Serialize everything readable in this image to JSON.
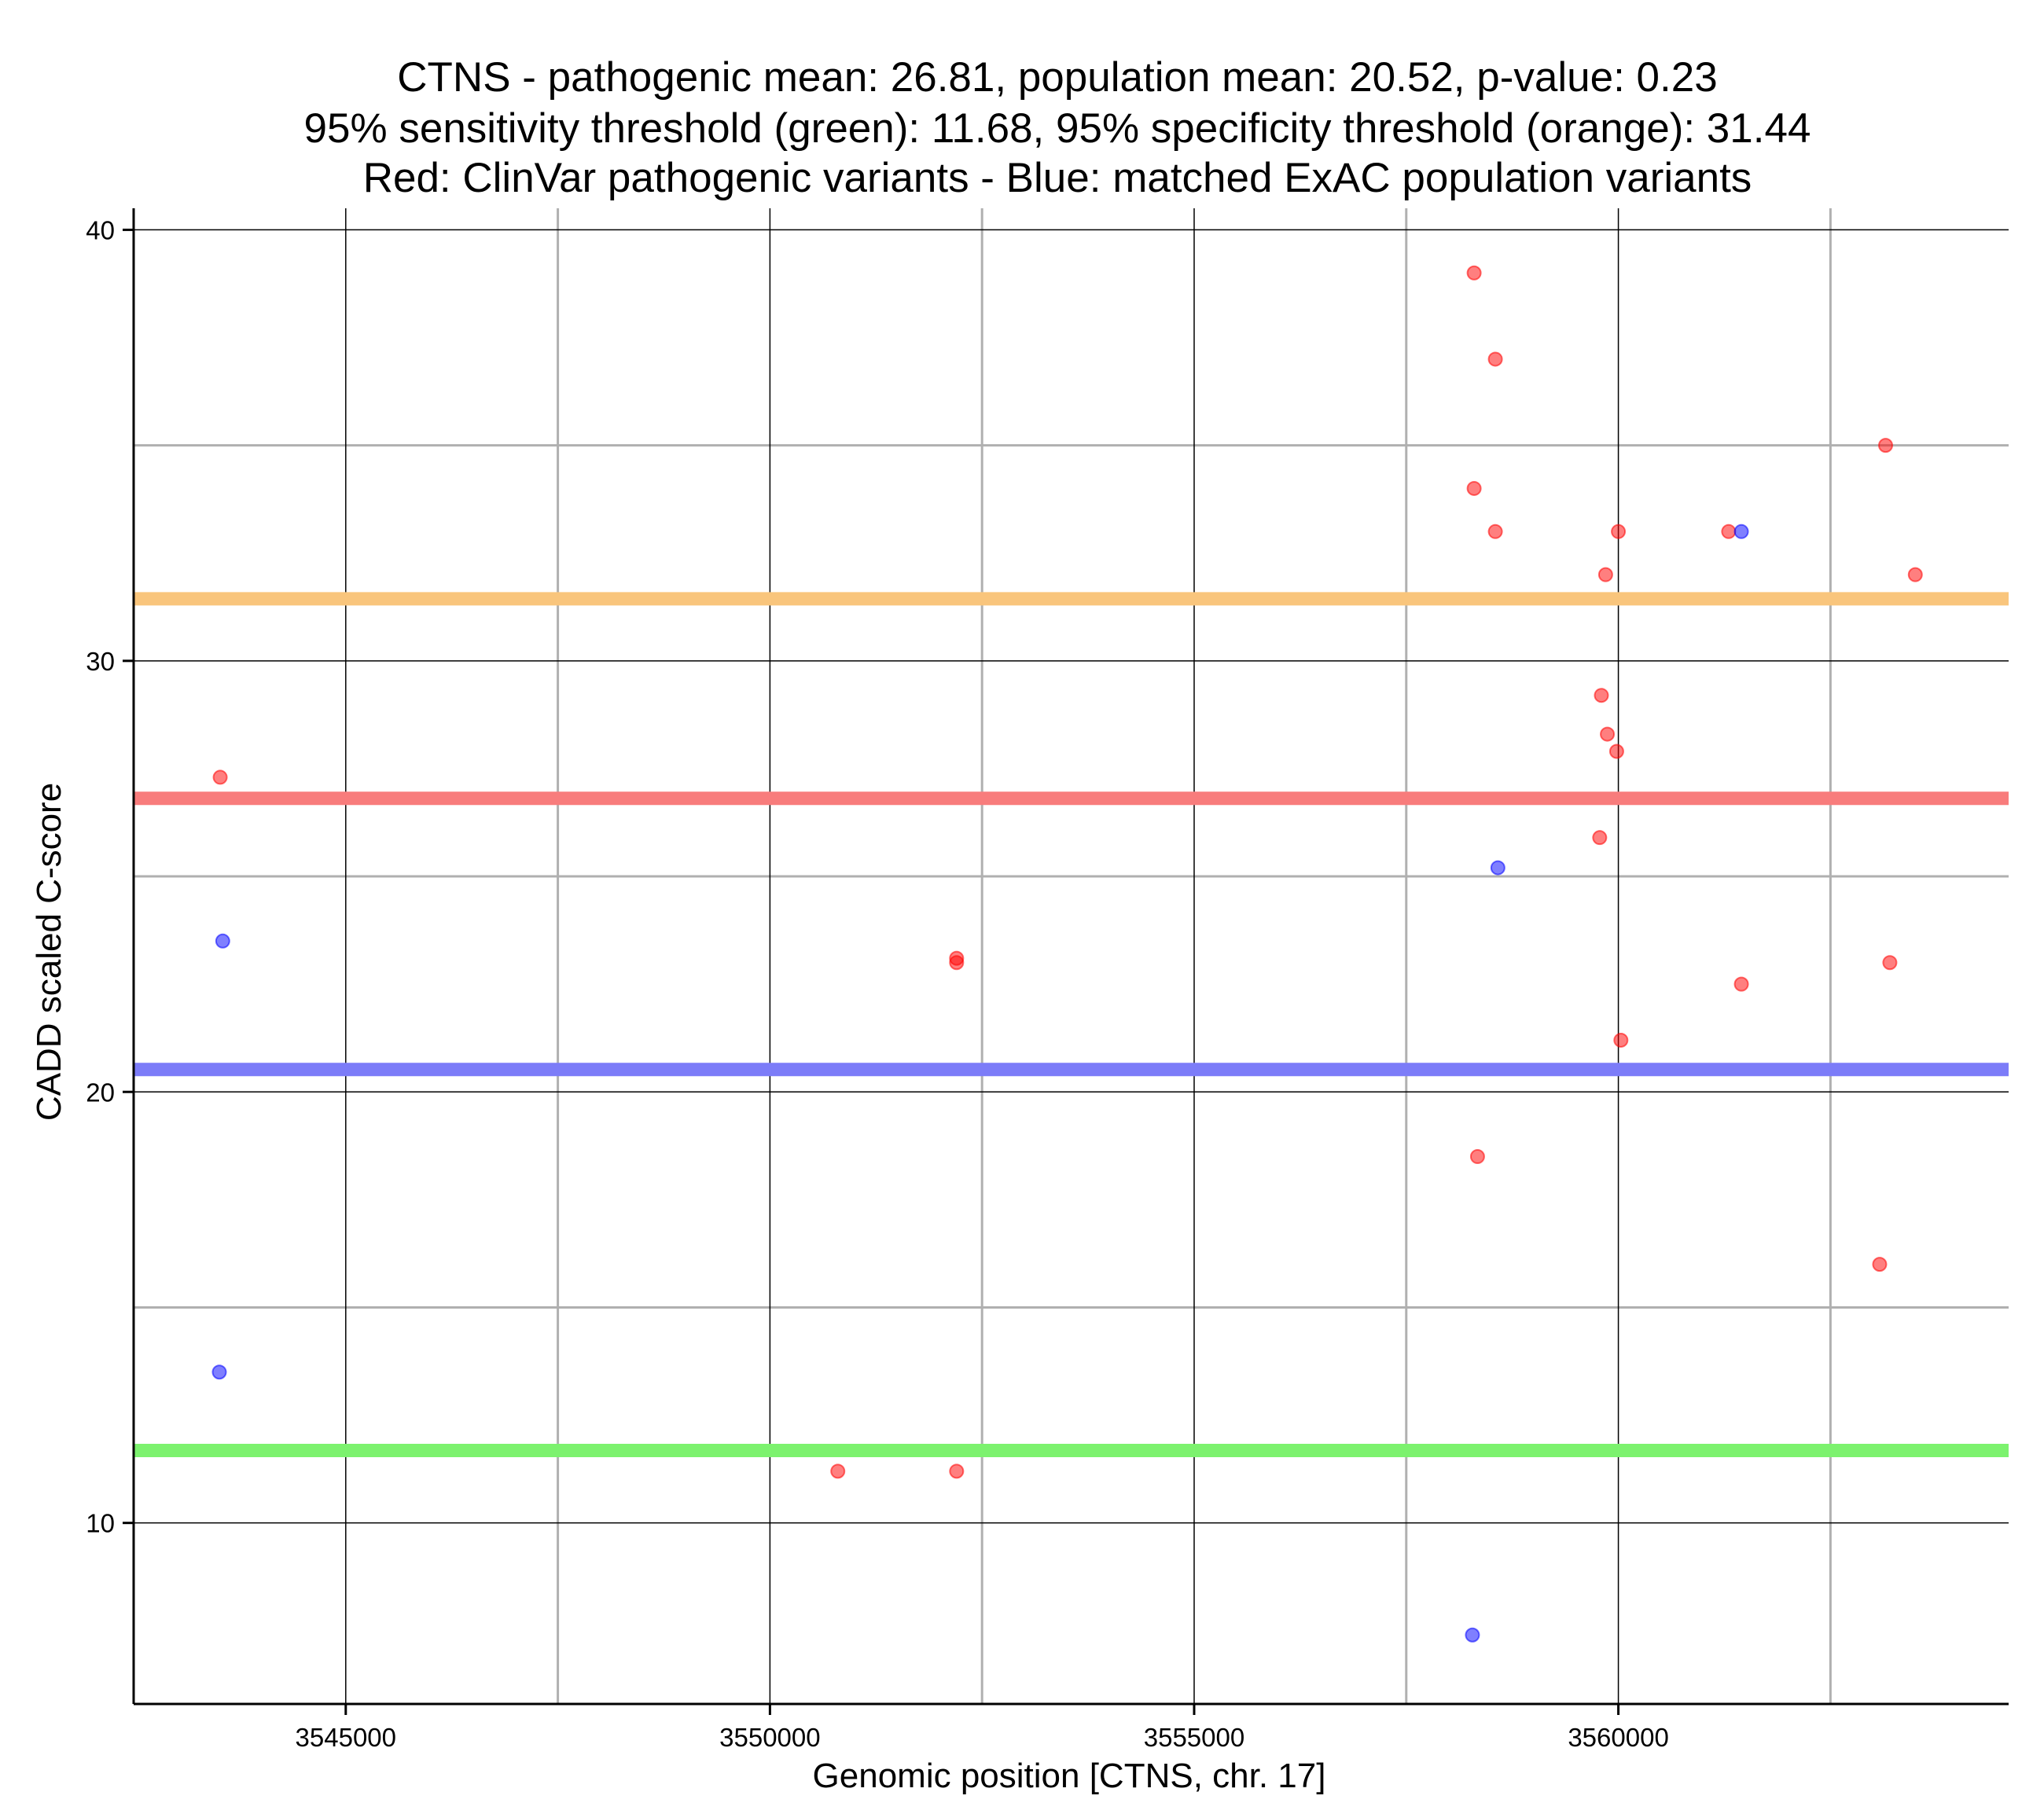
{
  "chart_data": {
    "type": "scatter",
    "title_lines": [
      "CTNS - pathogenic mean: 26.81, population mean: 20.52, p-value: 0.23",
      "95% sensitivity threshold (green): 11.68, 95% specificity threshold (orange): 31.44",
      "Red: ClinVar pathogenic variants - Blue: matched ExAC population variants"
    ],
    "xlabel": "Genomic position [CTNS, chr. 17]",
    "ylabel": "CADD scaled C-score",
    "xlim": [
      3542500,
      3564600
    ],
    "ylim": [
      5.8,
      40.5
    ],
    "x_ticks": [
      3545000,
      3550000,
      3555000,
      3560000
    ],
    "x_tick_labels": [
      "3545000",
      "3550000",
      "3555000",
      "3560000"
    ],
    "x_minor_gridlines": [
      3547500,
      3552500,
      3557500,
      3562500
    ],
    "y_ticks": [
      10,
      20,
      30,
      40
    ],
    "y_tick_labels": [
      "10",
      "20",
      "30",
      "40"
    ],
    "y_minor_gridlines": [
      15,
      25,
      35
    ],
    "colors": {
      "pathogenic": "#ff0000",
      "population": "#0000ff",
      "sensitivity": "#7cf26e",
      "specificity": "#f9c57c",
      "pathogenic_mean": "#f87c7c",
      "population_mean": "#7c7cf8",
      "grid_major": "#000000",
      "grid_minor": "#b0b0b0"
    },
    "hlines": [
      {
        "name": "specificity-threshold",
        "y": 31.44,
        "color_key": "specificity"
      },
      {
        "name": "pathogenic-mean",
        "y": 26.81,
        "color_key": "pathogenic_mean"
      },
      {
        "name": "population-mean",
        "y": 20.52,
        "color_key": "population_mean"
      },
      {
        "name": "sensitivity-threshold",
        "y": 11.68,
        "color_key": "sensitivity"
      }
    ],
    "series": [
      {
        "name": "ClinVar pathogenic variants",
        "color_key": "pathogenic",
        "points": [
          [
            3543520,
            27.3
          ],
          [
            3552200,
            23.1
          ],
          [
            3552200,
            23.0
          ],
          [
            3550800,
            11.2
          ],
          [
            3552200,
            11.2
          ],
          [
            3558300,
            39.0
          ],
          [
            3558550,
            37.0
          ],
          [
            3558300,
            34.0
          ],
          [
            3558550,
            33.0
          ],
          [
            3560000,
            33.0
          ],
          [
            3559850,
            32.0
          ],
          [
            3561300,
            33.0
          ],
          [
            3559800,
            29.2
          ],
          [
            3559870,
            28.3
          ],
          [
            3559980,
            27.9
          ],
          [
            3559780,
            25.9
          ],
          [
            3563150,
            35.0
          ],
          [
            3563500,
            32.0
          ],
          [
            3561450,
            22.5
          ],
          [
            3563200,
            23.0
          ],
          [
            3560030,
            21.2
          ],
          [
            3558340,
            18.5
          ],
          [
            3563080,
            16.0
          ]
        ]
      },
      {
        "name": "matched ExAC population variants",
        "color_key": "population",
        "points": [
          [
            3543550,
            23.5
          ],
          [
            3543510,
            13.5
          ],
          [
            3558580,
            25.2
          ],
          [
            3561450,
            33.0
          ],
          [
            3558280,
            7.4
          ]
        ]
      }
    ]
  }
}
